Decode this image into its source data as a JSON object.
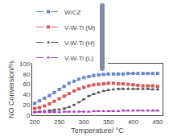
{
  "chart_data": {
    "type": "line",
    "xlabel": "Temperature/ °C",
    "ylabel": "NO Conversion/%",
    "xlim": [
      195,
      460
    ],
    "ylim": [
      0,
      100
    ],
    "xticks": [
      200,
      250,
      300,
      350,
      400,
      450
    ],
    "yticks": [
      0,
      20,
      40,
      60,
      80,
      100
    ],
    "grid": false,
    "legend": "upper left",
    "line_style": "dashed",
    "x": [
      200,
      210,
      220,
      230,
      240,
      250,
      260,
      270,
      280,
      290,
      300,
      310,
      320,
      330,
      340,
      350,
      360,
      370,
      380,
      390,
      400,
      410,
      420,
      430,
      440,
      450
    ],
    "series": [
      {
        "name": "W/CZ",
        "color": "#6688cc",
        "marker": "square",
        "values": [
          23,
          28,
          33,
          38,
          44,
          50,
          56,
          62,
          66,
          70,
          73,
          75,
          77,
          78,
          79,
          80,
          80,
          80,
          80,
          81,
          81,
          81,
          81,
          81,
          81,
          81
        ],
        "yerr": [
          1.5,
          1.5,
          1.5,
          1.5,
          1.5,
          1.5,
          1.5,
          1.5,
          1.5,
          1.5,
          1.5,
          1.5,
          1.5,
          1.5,
          1.5,
          1.5,
          1.5,
          1.5,
          1.5,
          1.5,
          1.5,
          1.5,
          1.5,
          1.5,
          1.5,
          1.5
        ]
      },
      {
        "name": "V-W-Ti (M)",
        "color": "#dd5555",
        "marker": "square",
        "values": [
          13,
          15,
          18,
          22,
          27,
          32,
          37,
          42,
          47,
          51,
          54,
          57,
          59,
          60,
          61,
          62,
          62,
          61,
          61,
          60,
          59,
          58,
          57,
          57,
          57,
          56
        ],
        "yerr": [
          1.2,
          1.2,
          1.2,
          1.2,
          1.2,
          1.2,
          1.2,
          1.2,
          1.2,
          1.2,
          1.2,
          1.2,
          1.2,
          1.2,
          1.2,
          1.2,
          1.2,
          1.2,
          1.2,
          1.2,
          1.2,
          1.2,
          1.2,
          1.2,
          1.2,
          1.2
        ]
      },
      {
        "name": "V-W-Ti (H)",
        "color": "#555555",
        "marker": "triangle",
        "values": [
          6,
          7,
          8,
          9,
          10,
          11,
          13,
          16,
          20,
          25,
          31,
          37,
          41,
          44,
          47,
          49,
          50,
          51,
          51,
          51,
          51,
          51,
          51,
          51,
          50,
          50
        ],
        "yerr": [
          1.0,
          1.0,
          1.0,
          1.0,
          1.0,
          1.0,
          1.0,
          1.0,
          1.0,
          1.0,
          1.0,
          1.0,
          1.0,
          1.0,
          1.0,
          1.0,
          1.0,
          1.0,
          1.0,
          1.0,
          1.0,
          1.0,
          1.0,
          1.0,
          1.0,
          1.0
        ]
      },
      {
        "name": "V-W-Ti (L)",
        "color": "#aa44bb",
        "marker": "triangle",
        "values": [
          6,
          6,
          6,
          6,
          6,
          6,
          7,
          7,
          7,
          7,
          7,
          7,
          8,
          8,
          8,
          8,
          8,
          8,
          9,
          9,
          9,
          9,
          9,
          9,
          9,
          9
        ],
        "yerr": [
          0.8,
          0.8,
          0.8,
          0.8,
          0.8,
          0.8,
          0.8,
          0.8,
          0.8,
          0.8,
          0.8,
          0.8,
          0.8,
          0.8,
          0.8,
          0.8,
          0.8,
          0.8,
          0.8,
          0.8,
          0.8,
          0.8,
          0.8,
          0.8,
          0.8,
          0.8
        ]
      }
    ]
  }
}
